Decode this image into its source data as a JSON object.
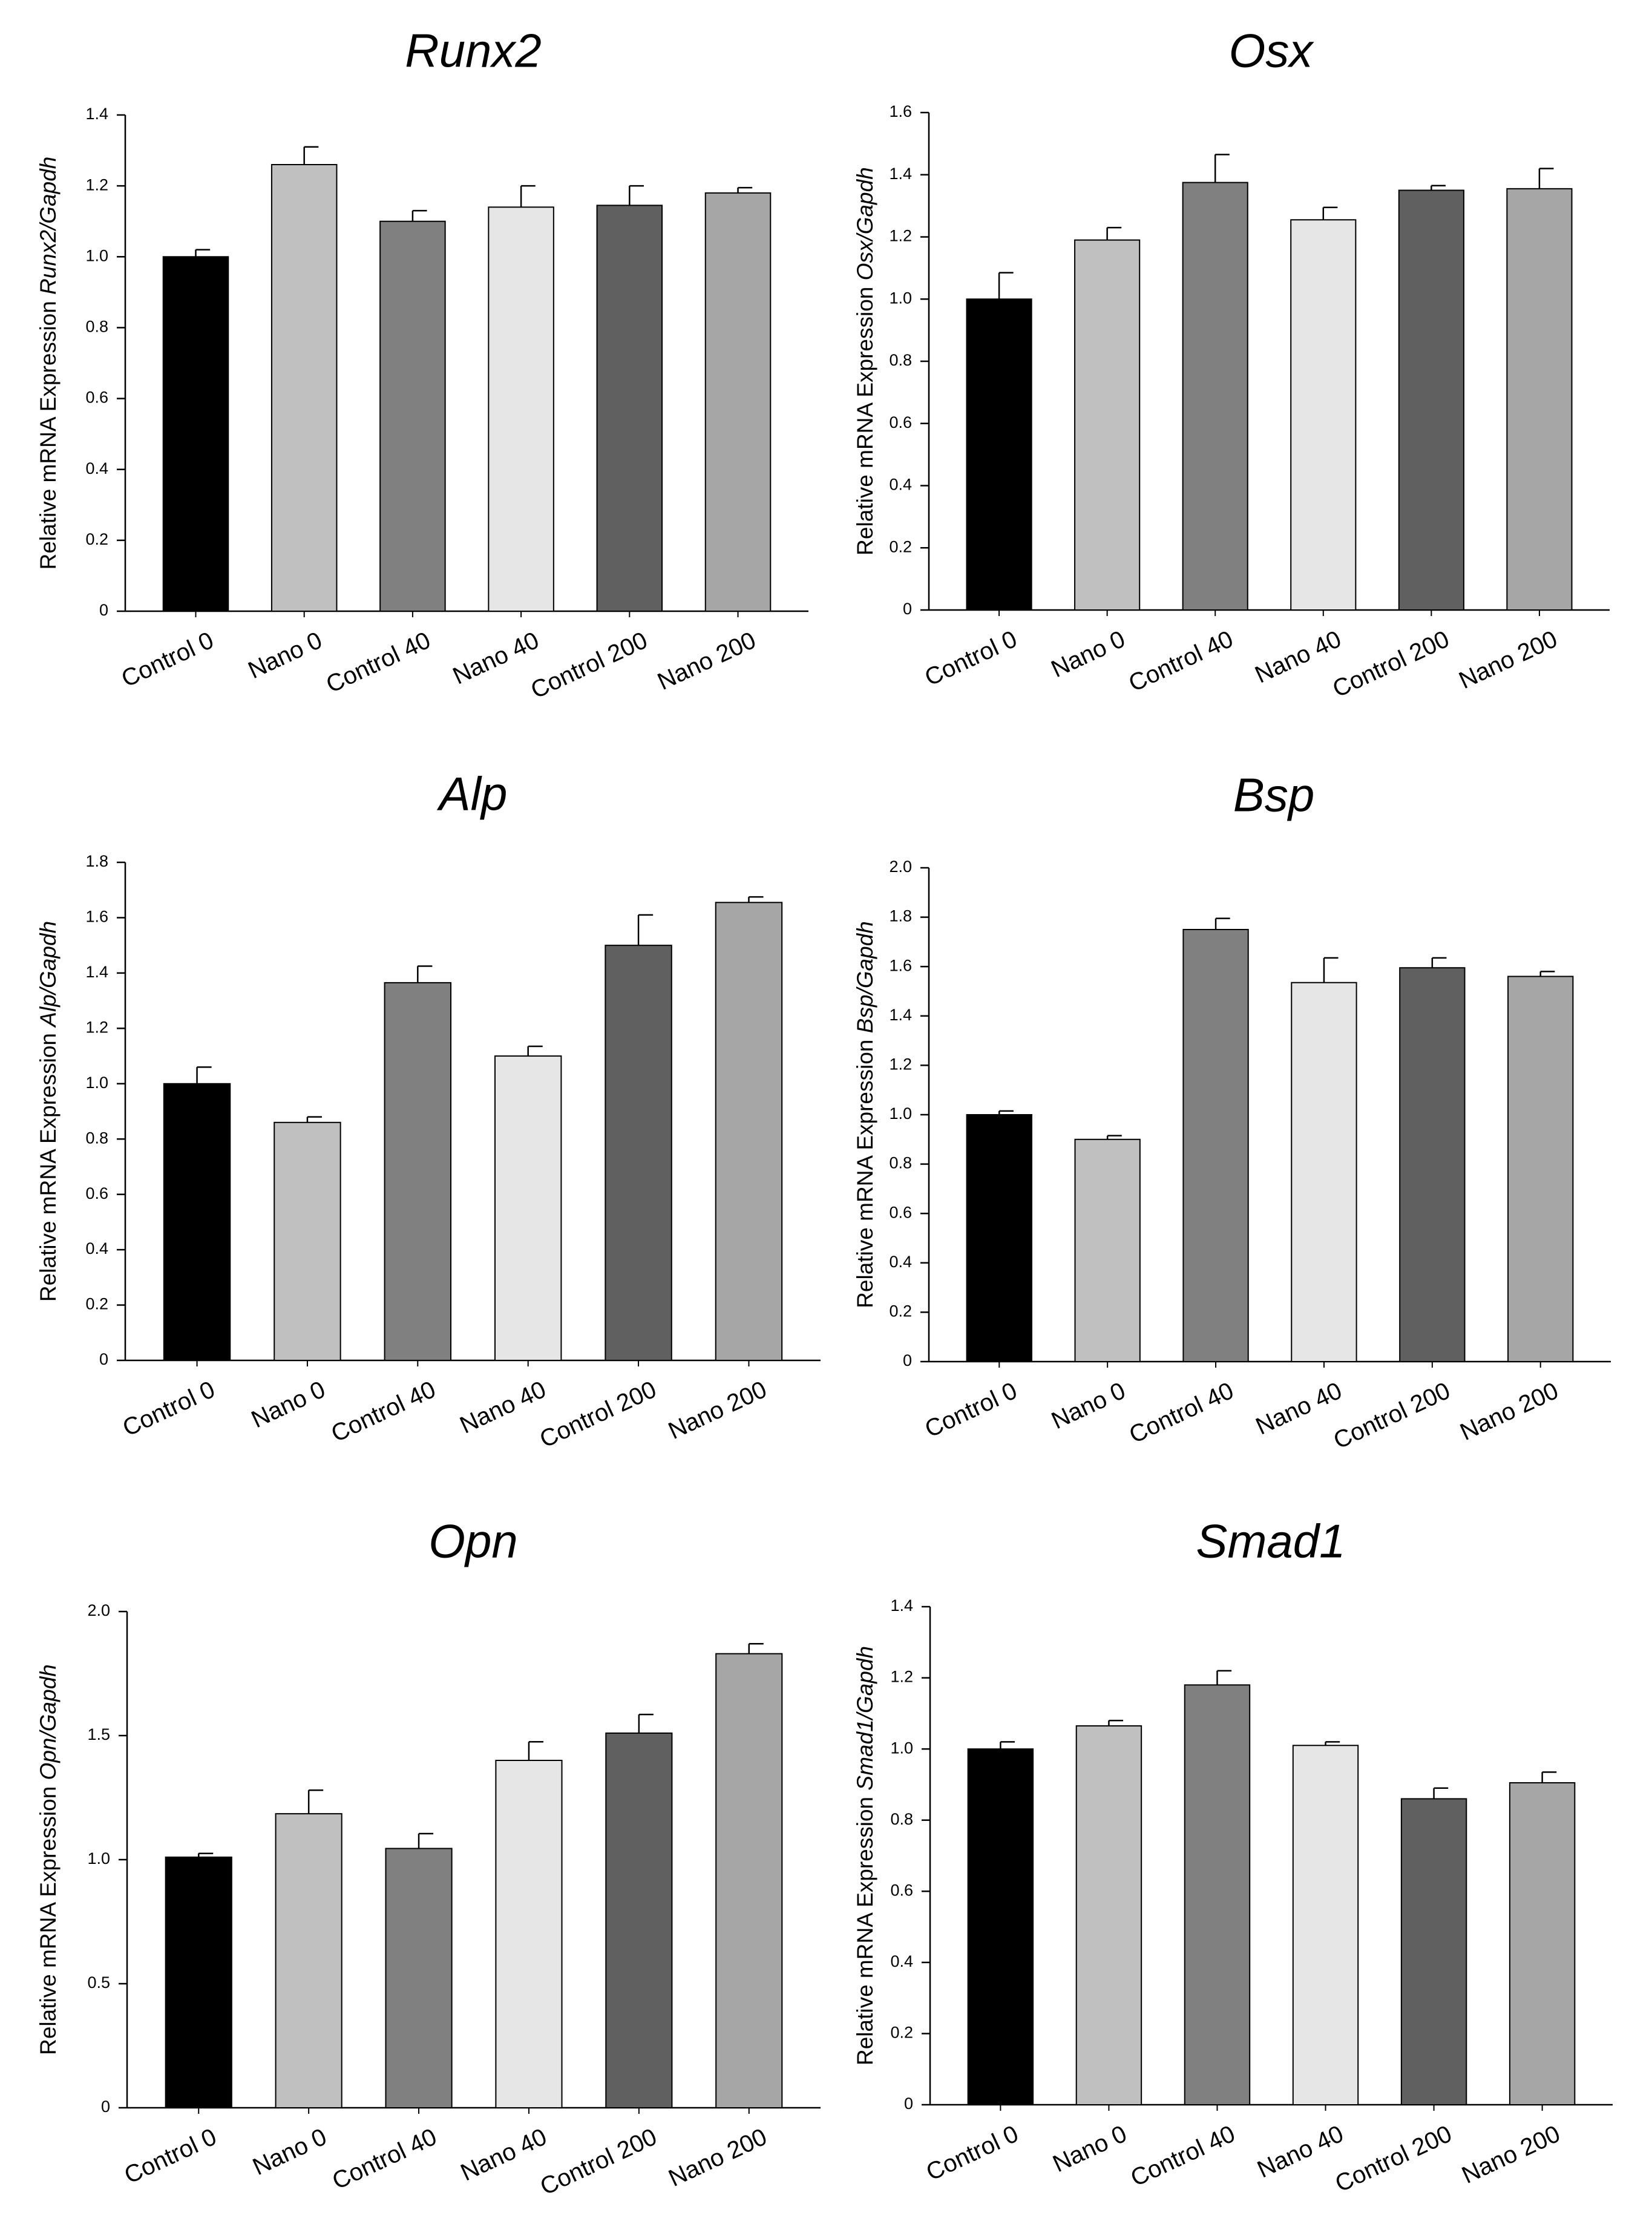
{
  "figure": {
    "bar_colors": [
      "#000000",
      "#c0c0c0",
      "#808080",
      "#e6e6e6",
      "#606060",
      "#a6a6a6"
    ]
  },
  "chart_data": [
    {
      "type": "bar",
      "title": "Runx2",
      "ylabel_prefix": "Relative mRNA Expression ",
      "ylabel_gene": "Runx2/Gapdh",
      "categories": [
        "Control 0",
        "Nano 0",
        "Control 40",
        "Nano 40",
        "Control 200",
        "Nano 200"
      ],
      "values": [
        1.0,
        1.26,
        1.1,
        1.14,
        1.145,
        1.18
      ],
      "errors": [
        0.02,
        0.05,
        0.03,
        0.06,
        0.055,
        0.015
      ],
      "ylim": [
        0,
        1.4
      ],
      "yticks": [
        0,
        0.2,
        0.4,
        0.6,
        0.8,
        1.0,
        1.2,
        1.4
      ],
      "yticklabels": [
        "0",
        "0.2",
        "0.4",
        "0.6",
        "0.8",
        "1.0",
        "1.2",
        "1.4"
      ],
      "grid": false
    },
    {
      "type": "bar",
      "title": "Osx",
      "ylabel_prefix": "Relative mRNA Expression ",
      "ylabel_gene": "Osx/Gapdh",
      "categories": [
        "Control 0",
        "Nano 0",
        "Control 40",
        "Nano 40",
        "Control 200",
        "Nano 200"
      ],
      "values": [
        1.0,
        1.19,
        1.375,
        1.255,
        1.35,
        1.355
      ],
      "errors": [
        0.085,
        0.04,
        0.09,
        0.04,
        0.015,
        0.065
      ],
      "ylim": [
        0,
        1.6
      ],
      "yticks": [
        0,
        0.2,
        0.4,
        0.6,
        0.8,
        1.0,
        1.2,
        1.4,
        1.6
      ],
      "yticklabels": [
        "0",
        "0.2",
        "0.4",
        "0.6",
        "0.8",
        "1.0",
        "1.2",
        "1.4",
        "1.6"
      ],
      "grid": false
    },
    {
      "type": "bar",
      "title": "Alp",
      "ylabel_prefix": "Relative mRNA Expression ",
      "ylabel_gene": "Alp/Gapdh",
      "categories": [
        "Control 0",
        "Nano 0",
        "Control 40",
        "Nano 40",
        "Control 200",
        "Nano 200"
      ],
      "values": [
        1.0,
        0.86,
        1.365,
        1.1,
        1.5,
        1.655
      ],
      "errors": [
        0.06,
        0.02,
        0.06,
        0.035,
        0.11,
        0.02
      ],
      "ylim": [
        0,
        1.8
      ],
      "yticks": [
        0,
        0.2,
        0.4,
        0.6,
        0.8,
        1.0,
        1.2,
        1.4,
        1.6,
        1.8
      ],
      "yticklabels": [
        "0",
        "0.2",
        "0.4",
        "0.6",
        "0.8",
        "1.0",
        "1.2",
        "1.4",
        "1.6",
        "1.8"
      ],
      "grid": false
    },
    {
      "type": "bar",
      "title": "Bsp",
      "ylabel_prefix": "Relative mRNA Expression ",
      "ylabel_gene": "Bsp/Gapdh",
      "categories": [
        "Control 0",
        "Nano 0",
        "Control 40",
        "Nano 40",
        "Control 200",
        "Nano 200"
      ],
      "values": [
        1.0,
        0.9,
        1.75,
        1.535,
        1.595,
        1.56
      ],
      "errors": [
        0.015,
        0.015,
        0.045,
        0.1,
        0.04,
        0.02
      ],
      "ylim": [
        0,
        2.0
      ],
      "yticks": [
        0,
        0.2,
        0.4,
        0.6,
        0.8,
        1.0,
        1.2,
        1.4,
        1.6,
        1.8,
        2.0
      ],
      "yticklabels": [
        "0",
        "0.2",
        "0.4",
        "0.6",
        "0.8",
        "1.0",
        "1.2",
        "1.4",
        "1.6",
        "1.8",
        "2.0"
      ],
      "grid": false
    },
    {
      "type": "bar",
      "title": "Opn",
      "ylabel_prefix": "Relative mRNA Expression ",
      "ylabel_gene": "Opn/Gapdh",
      "categories": [
        "Control 0",
        "Nano 0",
        "Control 40",
        "Nano 40",
        "Control 200",
        "Nano 200"
      ],
      "values": [
        1.01,
        1.185,
        1.045,
        1.4,
        1.51,
        1.83
      ],
      "errors": [
        0.015,
        0.095,
        0.06,
        0.075,
        0.075,
        0.04
      ],
      "ylim": [
        0,
        2.0
      ],
      "yticks": [
        0,
        0.5,
        1.0,
        1.5,
        2.0
      ],
      "yticklabels": [
        "0",
        "0.5",
        "1.0",
        "1.5",
        "2.0"
      ],
      "grid": false
    },
    {
      "type": "bar",
      "title": "Smad1",
      "ylabel_prefix": "Relative mRNA Expression ",
      "ylabel_gene": "Smad1/Gapdh",
      "categories": [
        "Control 0",
        "Nano 0",
        "Control 40",
        "Nano 40",
        "Control 200",
        "Nano 200"
      ],
      "values": [
        1.0,
        1.065,
        1.18,
        1.01,
        0.86,
        0.905
      ],
      "errors": [
        0.02,
        0.015,
        0.04,
        0.01,
        0.03,
        0.03
      ],
      "ylim": [
        0,
        1.4
      ],
      "yticks": [
        0,
        0.2,
        0.4,
        0.6,
        0.8,
        1.0,
        1.2,
        1.4
      ],
      "yticklabels": [
        "0",
        "0.2",
        "0.4",
        "0.6",
        "0.8",
        "1.0",
        "1.2",
        "1.4"
      ],
      "grid": false
    }
  ]
}
